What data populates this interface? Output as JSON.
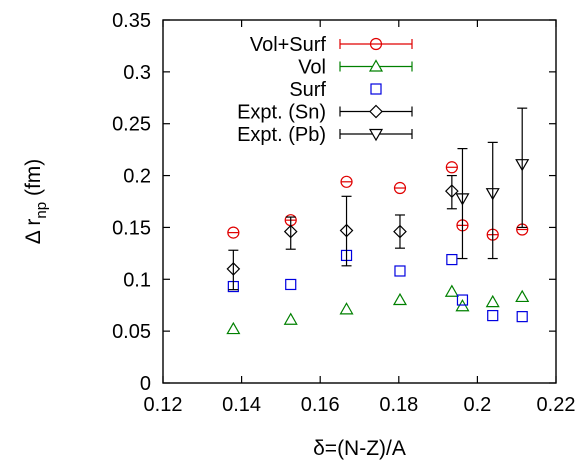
{
  "chart_data": {
    "type": "scatter",
    "xlabel": "δ=(N-Z)/A",
    "ylabel_main": "Δ r",
    "ylabel_sub": "np",
    "ylabel_unit": " (fm)",
    "xlim": [
      0.12,
      0.22
    ],
    "ylim": [
      0,
      0.35
    ],
    "xticks": [
      0.12,
      0.14,
      0.16,
      0.18,
      0.2,
      0.22
    ],
    "xtick_labels": [
      "0.12",
      "0.14",
      "0.16",
      "0.18",
      "0.2",
      "0.22"
    ],
    "yticks": [
      0,
      0.05,
      0.1,
      0.15,
      0.2,
      0.25,
      0.3,
      0.35
    ],
    "ytick_labels": [
      "0",
      "0.05",
      "0.1",
      "0.15",
      "0.2",
      "0.25",
      "0.3",
      "0.35"
    ],
    "grid": false,
    "legend_position": "top-right",
    "series": [
      {
        "name": "Vol+Surf",
        "marker": "circle",
        "color": "#e00000",
        "points": [
          {
            "x": 0.1379,
            "y": 0.145
          },
          {
            "x": 0.1525,
            "y": 0.157
          },
          {
            "x": 0.1667,
            "y": 0.194
          },
          {
            "x": 0.1803,
            "y": 0.188
          },
          {
            "x": 0.1935,
            "y": 0.208
          },
          {
            "x": 0.1962,
            "y": 0.152
          },
          {
            "x": 0.2039,
            "y": 0.143
          },
          {
            "x": 0.2114,
            "y": 0.148
          }
        ]
      },
      {
        "name": "Vol",
        "marker": "triangle-up",
        "color": "#008000",
        "points": [
          {
            "x": 0.1379,
            "y": 0.052
          },
          {
            "x": 0.1525,
            "y": 0.061
          },
          {
            "x": 0.1667,
            "y": 0.071
          },
          {
            "x": 0.1803,
            "y": 0.08
          },
          {
            "x": 0.1935,
            "y": 0.088
          },
          {
            "x": 0.1962,
            "y": 0.074
          },
          {
            "x": 0.2039,
            "y": 0.078
          },
          {
            "x": 0.2114,
            "y": 0.083
          }
        ]
      },
      {
        "name": "Surf",
        "marker": "square",
        "color": "#0000e0",
        "points": [
          {
            "x": 0.1379,
            "y": 0.093
          },
          {
            "x": 0.1525,
            "y": 0.095
          },
          {
            "x": 0.1667,
            "y": 0.123
          },
          {
            "x": 0.1803,
            "y": 0.108
          },
          {
            "x": 0.1935,
            "y": 0.119
          },
          {
            "x": 0.1962,
            "y": 0.08
          },
          {
            "x": 0.2039,
            "y": 0.065
          },
          {
            "x": 0.2114,
            "y": 0.064
          }
        ]
      },
      {
        "name": "Expt. (Sn)",
        "marker": "diamond",
        "color": "#000000",
        "points": [
          {
            "x": 0.1379,
            "y": 0.11,
            "yerr_low": 0.09,
            "yerr_high": 0.128
          },
          {
            "x": 0.1525,
            "y": 0.146,
            "yerr_low": 0.129,
            "yerr_high": 0.16
          },
          {
            "x": 0.1667,
            "y": 0.147,
            "yerr_low": 0.113,
            "yerr_high": 0.18
          },
          {
            "x": 0.1803,
            "y": 0.146,
            "yerr_low": 0.13,
            "yerr_high": 0.162
          },
          {
            "x": 0.1935,
            "y": 0.185,
            "yerr_low": 0.168,
            "yerr_high": 0.2
          }
        ]
      },
      {
        "name": "Expt. (Pb)",
        "marker": "triangle-down",
        "color": "#000000",
        "points": [
          {
            "x": 0.1962,
            "y": 0.178,
            "yerr_low": 0.12,
            "yerr_high": 0.226
          },
          {
            "x": 0.2039,
            "y": 0.183,
            "yerr_low": 0.12,
            "yerr_high": 0.232
          },
          {
            "x": 0.2114,
            "y": 0.211,
            "yerr_low": 0.15,
            "yerr_high": 0.265
          }
        ]
      }
    ]
  }
}
